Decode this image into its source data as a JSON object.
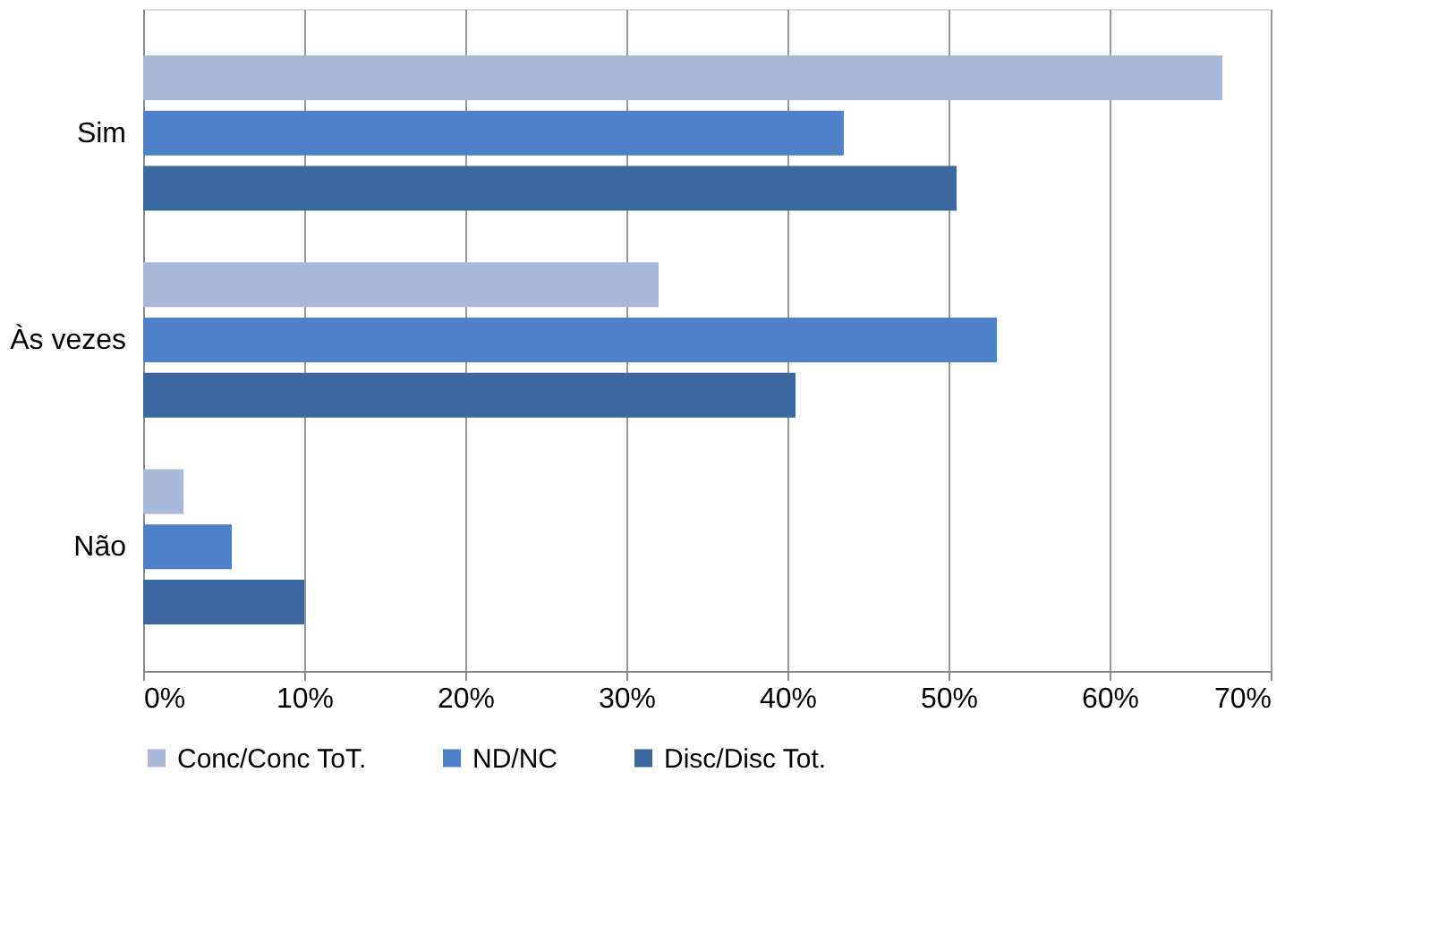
{
  "chart_data": {
    "type": "bar",
    "orientation": "horizontal",
    "categories": [
      "Sim",
      "Às vezes",
      "Não"
    ],
    "series": [
      {
        "name": "Conc/Conc ToT.",
        "color": "#a9b9dc",
        "values": [
          67,
          32,
          2.5
        ]
      },
      {
        "name": "ND/NC",
        "color": "#4f81c7",
        "values": [
          43.5,
          53,
          5.5
        ]
      },
      {
        "name": "Disc/Disc Tot.",
        "color": "#3d679f",
        "values": [
          50.5,
          40.5,
          10
        ]
      }
    ],
    "xlim": [
      0,
      70
    ],
    "xticks": [
      {
        "value": 0,
        "label": "0%"
      },
      {
        "value": 10,
        "label": "10%"
      },
      {
        "value": 20,
        "label": "20%"
      },
      {
        "value": 30,
        "label": "30%"
      },
      {
        "value": 40,
        "label": "40%"
      },
      {
        "value": 50,
        "label": "50%"
      },
      {
        "value": 60,
        "label": "60%"
      },
      {
        "value": 70,
        "label": "70%"
      }
    ],
    "grid": "x",
    "legend": "bottom"
  }
}
